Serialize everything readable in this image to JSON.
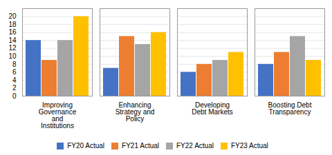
{
  "chart_data": {
    "type": "bar",
    "categories": [
      "Improving\nGovernance\nand\nInstitutions",
      "Enhancing\nStrategy and\nPolicy",
      "Developing\nDebt Markets",
      "Boosting Debt\nTransparency"
    ],
    "series": [
      {
        "name": "FY20 Actual",
        "color": "#4472C4",
        "values": [
          14,
          7,
          6,
          8
        ]
      },
      {
        "name": "FY21 Actual",
        "color": "#ED7D31",
        "values": [
          9,
          15,
          8,
          11
        ]
      },
      {
        "name": "FY22 Actual",
        "color": "#A5A5A5",
        "values": [
          14,
          13,
          9,
          15
        ]
      },
      {
        "name": "FY23 Actual",
        "color": "#FFC000",
        "values": [
          20,
          16,
          11,
          9
        ]
      }
    ],
    "ylim": [
      0,
      22
    ],
    "yticks": [
      0,
      2,
      4,
      6,
      8,
      10,
      12,
      14,
      16,
      18,
      20
    ],
    "grid": true,
    "legend": "bottom"
  }
}
